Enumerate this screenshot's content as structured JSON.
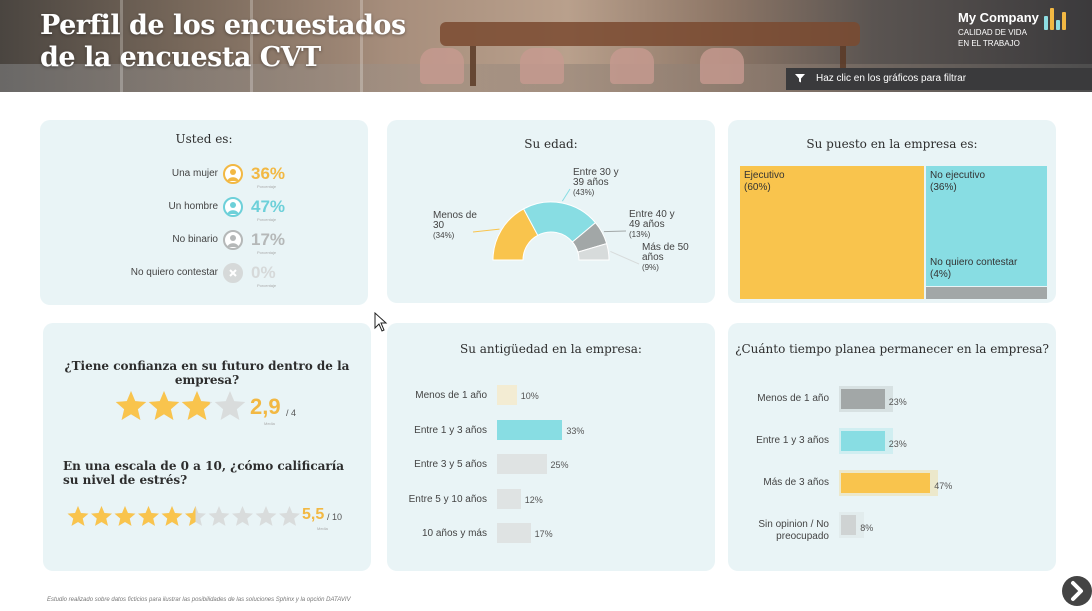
{
  "header": {
    "title_line1": "Perfil de los encuestados",
    "title_line2": "de la encuesta CVT",
    "brand_name": "My Company",
    "brand_sub1": "CALIDAD DE VIDA",
    "brand_sub2": "EN EL TRABAJO",
    "filter_hint": "Haz clic en los gráficos para filtrar",
    "logo_colors": [
      "#8edde3",
      "#f2b843",
      "#8edde3",
      "#f2b843"
    ]
  },
  "gender": {
    "title": "Usted es:",
    "rows": [
      {
        "label": "Una mujer",
        "pct": "36%",
        "sub": "Porcentaje",
        "color": "#f2b843"
      },
      {
        "label": "Un hombre",
        "pct": "47%",
        "sub": "Porcentaje",
        "color": "#6dd0d9"
      },
      {
        "label": "No binario",
        "pct": "17%",
        "sub": "Porcentaje",
        "color": "#b5b8b8"
      },
      {
        "label": "No quiero contestar",
        "pct": "0%",
        "sub": "Porcentaje",
        "color": "#d6d9d9"
      }
    ]
  },
  "age": {
    "title": "Su edad:",
    "chart_data": {
      "type": "pie",
      "subtype": "half-donut",
      "segments": [
        {
          "label_lines": [
            "Menos de",
            "30"
          ],
          "pct_label": "(34%)",
          "value": 34,
          "color": "#f9c44d"
        },
        {
          "label_lines": [
            "Entre 30 y",
            "39 años"
          ],
          "pct_label": "(43%)",
          "value": 43,
          "color": "#88dde3"
        },
        {
          "label_lines": [
            "Entre 40 y",
            "49 años"
          ],
          "pct_label": "(13%)",
          "value": 13,
          "color": "#a2a7a7"
        },
        {
          "label_lines": [
            "Más de 50",
            "años"
          ],
          "pct_label": "(9%)",
          "value": 9,
          "color": "#d7dbdb"
        }
      ]
    }
  },
  "position": {
    "title": "Su puesto en la empresa es:",
    "chart_data": {
      "type": "treemap",
      "cells": [
        {
          "label": "Ejecutivo",
          "pct_label": "(60%)",
          "value": 60,
          "color": "#f9c44d"
        },
        {
          "label": "No ejecutivo",
          "pct_label": "(36%)",
          "value": 36,
          "color": "#88dde3"
        },
        {
          "label": "No quiero contestar",
          "pct_label": "(4%)",
          "value": 4,
          "color": "#a2a7a7"
        }
      ]
    }
  },
  "confidence": {
    "q1": "¿Tiene confianza en su futuro dentro de la empresa?",
    "score1": "2,9",
    "max1": "/ 4",
    "sub1": "Media",
    "rating1": 2.9,
    "stars1_total": 4,
    "q2": "En una escala de 0 a 10, ¿cómo calificaría su nivel de estrés?",
    "score2": "5,5",
    "max2": "/ 10",
    "sub2": "Media",
    "rating2": 5.5,
    "stars2_total": 10,
    "star_on": "#f9c44d",
    "star_off": "#d9dcdc"
  },
  "seniority": {
    "title": "Su antigüedad en la empresa:",
    "chart_data": {
      "type": "bar",
      "orientation": "horizontal",
      "categories": [
        "Menos de 1 año",
        "Entre 1 y 3 años",
        "Entre 3 y 5 años",
        "Entre 5 y 10 años",
        "10 años y más"
      ],
      "values": [
        10,
        33,
        25,
        12,
        17
      ],
      "value_labels": [
        "10%",
        "33%",
        "25%",
        "12%",
        "17%"
      ],
      "colors": [
        "#f3ecd3",
        "#88dde3",
        "#dfe3e3",
        "#dfe3e3",
        "#dfe3e3"
      ]
    }
  },
  "stay": {
    "title": "¿Cuánto tiempo planea permanecer en la empresa?",
    "chart_data": {
      "type": "bar",
      "orientation": "horizontal",
      "categories": [
        "Menos de 1 año",
        "Entre 1 y 3 años",
        "Más de 3 años",
        "Sin opinion / No preocupado"
      ],
      "values": [
        23,
        23,
        47,
        8
      ],
      "value_labels": [
        "23%",
        "23%",
        "47%",
        "8%"
      ],
      "colors": [
        "#a2a7a7",
        "#88dde3",
        "#f9c44d",
        "#cfd3d3"
      ]
    }
  },
  "footnote": "Estudio realizado sobre datos ficticios para ilustrar las posibilidades de las soluciones Sphinx y la opción DATAVIV"
}
